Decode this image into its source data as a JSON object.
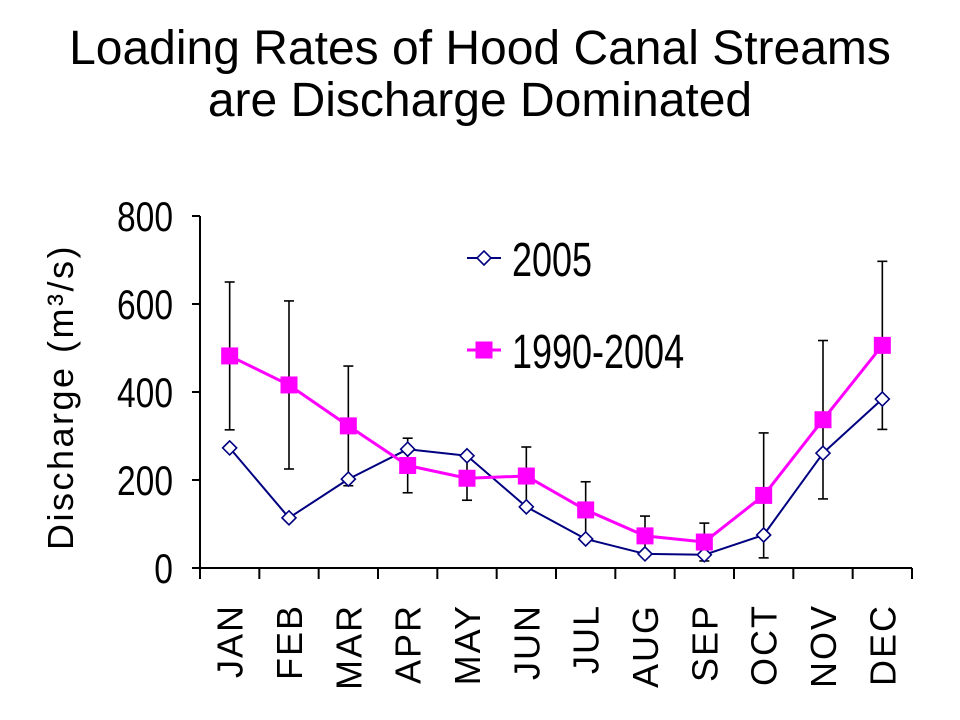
{
  "chart_data": {
    "type": "line",
    "title": [
      "Loading Rates of Hood Canal Streams",
      "are Discharge Dominated"
    ],
    "ylabel": "Discharge (m³/s)",
    "categories": [
      "JAN",
      "FEB",
      "MAR",
      "APR",
      "MAY",
      "JUN",
      "JUL",
      "AUG",
      "SEP",
      "OCT",
      "NOV",
      "DEC"
    ],
    "ylim": [
      0,
      800
    ],
    "yticks": [
      0,
      200,
      400,
      600,
      800
    ],
    "grid": false,
    "legend": "top-center",
    "series": [
      {
        "name": "2005",
        "color": "#000080",
        "marker": "diamond-open",
        "values": [
          273,
          114,
          202,
          270,
          255,
          139,
          66,
          32,
          30,
          75,
          261,
          384
        ]
      },
      {
        "name": "1990-2004",
        "color": "#FF00FF",
        "marker": "square-filled",
        "values": [
          482,
          416,
          323,
          233,
          204,
          209,
          132,
          73,
          59,
          165,
          337,
          506
        ],
        "error": [
          168,
          191,
          136,
          62,
          50,
          66,
          64,
          45,
          43,
          142,
          180,
          191
        ]
      }
    ]
  },
  "colors": {
    "axis": "#000000",
    "error_bar": "#000000",
    "marker_fill": "#FFFFFF",
    "background": "#FFFFFF"
  }
}
